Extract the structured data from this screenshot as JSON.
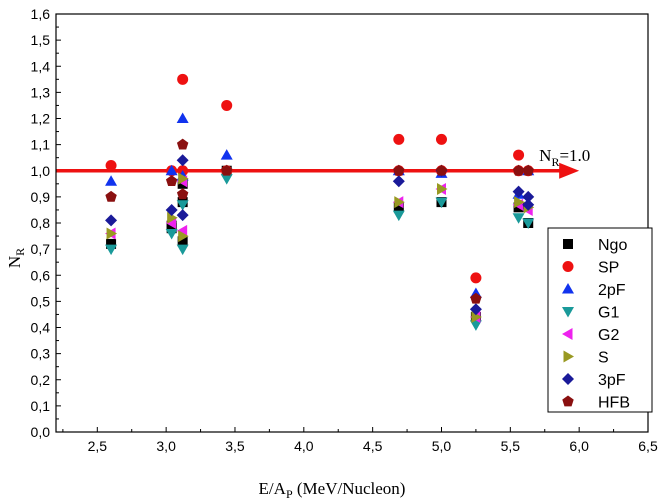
{
  "chart_data": {
    "type": "scatter",
    "xlabel": "E/A",
    "xlabel_sub": "P",
    "xlabel_unit": " (MeV/Nucleon)",
    "ylabel": "N",
    "ylabel_sub": "R",
    "xlim": [
      2.2,
      6.5
    ],
    "ylim": [
      0.0,
      1.6
    ],
    "xticks": [
      "2,5",
      "3,0",
      "3,5",
      "4,0",
      "4,5",
      "5,0",
      "5,5",
      "6,0",
      "6,5"
    ],
    "xtick_values": [
      2.5,
      3.0,
      3.5,
      4.0,
      4.5,
      5.0,
      5.5,
      6.0,
      6.5
    ],
    "yticks": [
      "0,0",
      "0,1",
      "0,2",
      "0,3",
      "0,4",
      "0,5",
      "0,6",
      "0,7",
      "0,8",
      "0,9",
      "1,0",
      "1,1",
      "1,2",
      "1,3",
      "1,4",
      "1,5",
      "1,6"
    ],
    "ytick_values": [
      0.0,
      0.1,
      0.2,
      0.3,
      0.4,
      0.5,
      0.6,
      0.7,
      0.8,
      0.9,
      1.0,
      1.1,
      1.2,
      1.3,
      1.4,
      1.5,
      1.6
    ],
    "legend_position": "right",
    "reference_line": {
      "y": 1.0,
      "x_start": 2.2,
      "x_end": 6.0,
      "color": "#ee1111"
    },
    "annotation": {
      "text_main": "N",
      "text_sub": "R",
      "text_rest": "=1.0",
      "x": 6.0,
      "y": 1.0
    },
    "series": [
      {
        "name": "Ngo",
        "marker": "square",
        "color": "#000000",
        "points": [
          [
            2.6,
            0.72
          ],
          [
            3.04,
            0.79
          ],
          [
            3.04,
            0.78
          ],
          [
            3.12,
            0.95
          ],
          [
            3.12,
            0.73
          ],
          [
            3.12,
            0.88
          ],
          [
            3.44,
            1.0
          ],
          [
            4.69,
            0.86
          ],
          [
            5.0,
            0.88
          ],
          [
            5.25,
            0.44
          ],
          [
            5.56,
            0.86
          ],
          [
            5.63,
            0.8
          ]
        ]
      },
      {
        "name": "SP",
        "marker": "circle",
        "color": "#ee1111",
        "points": [
          [
            2.6,
            1.02
          ],
          [
            3.04,
            1.0
          ],
          [
            3.12,
            1.35
          ],
          [
            3.12,
            1.0
          ],
          [
            3.44,
            1.25
          ],
          [
            3.44,
            1.0
          ],
          [
            4.69,
            1.12
          ],
          [
            4.69,
            1.0
          ],
          [
            5.0,
            1.12
          ],
          [
            5.0,
            1.0
          ],
          [
            5.25,
            0.59
          ],
          [
            5.56,
            1.06
          ],
          [
            5.56,
            1.0
          ],
          [
            5.63,
            1.0
          ]
        ]
      },
      {
        "name": "2pF",
        "marker": "triangle-up",
        "color": "#1133ee",
        "points": [
          [
            2.6,
            0.96
          ],
          [
            3.04,
            1.0
          ],
          [
            3.12,
            1.2
          ],
          [
            3.12,
            0.98
          ],
          [
            3.44,
            1.06
          ],
          [
            4.69,
            1.0
          ],
          [
            5.0,
            0.99
          ],
          [
            5.25,
            0.53
          ],
          [
            5.56,
            0.91
          ],
          [
            5.63,
            1.0
          ]
        ]
      },
      {
        "name": "G1",
        "marker": "triangle-down",
        "color": "#1a9a9a",
        "points": [
          [
            2.6,
            0.7
          ],
          [
            3.04,
            0.76
          ],
          [
            3.12,
            0.7
          ],
          [
            3.12,
            0.87
          ],
          [
            3.44,
            0.97
          ],
          [
            4.69,
            0.83
          ],
          [
            5.0,
            0.88
          ],
          [
            5.25,
            0.41
          ],
          [
            5.56,
            0.82
          ],
          [
            5.63,
            0.8
          ]
        ]
      },
      {
        "name": "G2",
        "marker": "triangle-left",
        "color": "#ee22ee",
        "points": [
          [
            2.6,
            0.76
          ],
          [
            3.04,
            0.8
          ],
          [
            3.12,
            0.77
          ],
          [
            3.12,
            0.96
          ],
          [
            4.69,
            0.88
          ],
          [
            5.0,
            0.93
          ],
          [
            5.25,
            0.44
          ],
          [
            5.56,
            0.87
          ],
          [
            5.63,
            0.85
          ]
        ]
      },
      {
        "name": "S",
        "marker": "triangle-right",
        "color": "#999922",
        "points": [
          [
            2.6,
            0.76
          ],
          [
            3.04,
            0.82
          ],
          [
            3.12,
            0.75
          ],
          [
            3.12,
            0.97
          ],
          [
            4.69,
            0.88
          ],
          [
            5.0,
            0.93
          ],
          [
            5.25,
            0.44
          ],
          [
            5.56,
            0.88
          ],
          [
            5.63,
            0.86
          ]
        ]
      },
      {
        "name": "3pF",
        "marker": "diamond",
        "color": "#1a1a99",
        "points": [
          [
            2.6,
            0.81
          ],
          [
            3.04,
            0.85
          ],
          [
            3.12,
            0.83
          ],
          [
            3.12,
            1.04
          ],
          [
            4.69,
            0.96
          ],
          [
            5.0,
            1.0
          ],
          [
            5.25,
            0.47
          ],
          [
            5.56,
            0.92
          ],
          [
            5.63,
            0.9
          ],
          [
            5.63,
            0.87
          ]
        ]
      },
      {
        "name": "HFB",
        "marker": "pentagon",
        "color": "#8a1010",
        "points": [
          [
            2.6,
            0.9
          ],
          [
            3.04,
            0.96
          ],
          [
            3.12,
            1.1
          ],
          [
            3.12,
            0.91
          ],
          [
            3.44,
            1.0
          ],
          [
            4.69,
            1.0
          ],
          [
            5.0,
            1.0
          ],
          [
            5.25,
            0.51
          ],
          [
            5.56,
            1.0
          ],
          [
            5.63,
            1.0
          ]
        ]
      }
    ]
  }
}
